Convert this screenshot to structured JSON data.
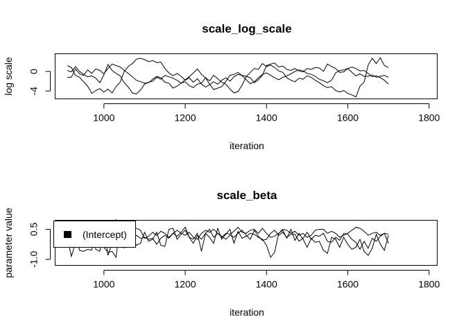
{
  "chart_data": [
    {
      "type": "line",
      "title": "scale_log_scale",
      "xlabel": "iteration",
      "ylabel": "log scale",
      "xlim": [
        880,
        1820
      ],
      "ylim": [
        -5.6,
        3.6
      ],
      "xticks": [
        1000,
        1200,
        1400,
        1600,
        1800
      ],
      "yticks": [
        -4,
        0
      ],
      "grid": false,
      "x_start": 910,
      "x_step": 10,
      "series": [
        {
          "values": [
            1.2,
            0.8,
            -0.8,
            -1.2,
            -2.1,
            -3.0,
            -4.5,
            -3.9,
            -3.5,
            -4.2,
            -3.6,
            -4.4,
            -3.1,
            -2.2,
            0.0,
            1.0,
            1.6,
            2.5,
            2.7,
            2.4,
            2.0,
            2.2,
            1.8,
            1.9,
            0.6,
            -0.3,
            -0.9,
            -0.4,
            -1.0,
            -1.8,
            -1.3,
            -2.2,
            -1.5,
            -2.6,
            -3.2,
            -2.7,
            -2.1,
            -2.6,
            -1.8,
            -1.3,
            -2.0,
            -1.1,
            -0.6,
            -0.8,
            -1.0,
            -1.3,
            -2.3,
            -1.7,
            -0.8,
            1.2,
            1.5,
            1.7,
            0.9,
            1.1,
            0.4,
            0.2,
            0.6,
            0.1,
            -0.1,
            0.6,
            0.4,
            0.8,
            0.7,
            0.0,
            1.5,
            1.0,
            0.6,
            -0.2,
            -0.1,
            0.6,
            -0.2,
            -0.9,
            -0.5,
            -1.0,
            -1.0,
            -0.7,
            -1.2,
            -1.0,
            -0.8,
            -1.2
          ]
        },
        {
          "values": [
            0.2,
            -0.1,
            1.0,
            0.0,
            -0.6,
            -1.1,
            -0.9,
            -1.4,
            -2.3,
            -0.7,
            1.4,
            0.2,
            -0.4,
            -0.9,
            -2.3,
            -3.2,
            -4.4,
            -4.6,
            -3.8,
            -2.6,
            -2.2,
            -2.0,
            -1.2,
            -1.6,
            -0.8,
            -1.1,
            -1.4,
            -1.8,
            -2.4,
            -2.1,
            -2.9,
            -3.3,
            -2.6,
            -2.4,
            -1.3,
            -1.9,
            -0.8,
            -1.5,
            -2.2,
            -2.6,
            -3.6,
            -4.4,
            -4.1,
            -2.8,
            -1.1,
            -0.2,
            0.6,
            0.4,
            1.6,
            1.0,
            1.3,
            0.8,
            0.1,
            -0.2,
            -1.3,
            -1.8,
            -2.1,
            -1.4,
            -1.6,
            -0.9,
            -1.2,
            -1.8,
            -2.3,
            -2.9,
            -3.3,
            -3.1,
            -3.9,
            -4.2,
            -3.9,
            -4.5,
            -4.8,
            -5.2,
            -3.0,
            -2.2,
            1.3,
            2.7,
            1.6,
            2.8,
            1.2,
            0.8
          ]
        },
        {
          "values": [
            -1.2,
            -1.2,
            0.5,
            -0.5,
            -0.8,
            0.3,
            -0.4,
            0.5,
            0.2,
            -0.5,
            0.6,
            1.5,
            1.2,
            0.9,
            0.2,
            -0.4,
            -1.1,
            -1.8,
            -2.1,
            -2.4,
            -2.3,
            -1.6,
            -1.0,
            -1.3,
            -2.2,
            -2.4,
            -3.4,
            -3.0,
            -2.4,
            -1.7,
            -1.1,
            -0.3,
            0.5,
            -0.6,
            -1.3,
            -2.6,
            -3.7,
            -3.4,
            -3.1,
            -2.0,
            -0.8,
            -0.6,
            -0.2,
            -0.9,
            -1.7,
            -2.5,
            -2.1,
            -1.3,
            -0.6,
            -0.3,
            -0.8,
            -1.3,
            -1.7,
            -1.2,
            -0.9,
            -0.5,
            0.0,
            0.3,
            0.1,
            -0.4,
            -0.6,
            -1.0,
            -1.6,
            -1.9,
            -2.3,
            -1.8,
            -0.3,
            0.2,
            0.3,
            0.6,
            0.9,
            0.6,
            0.1,
            0.2,
            -0.4,
            -1.1,
            -0.9,
            -1.3,
            -1.8,
            -2.6
          ]
        }
      ]
    },
    {
      "type": "line",
      "title": "scale_beta",
      "xlabel": "iteration",
      "ylabel": "parameter value",
      "xlim": [
        880,
        1820
      ],
      "ylim": [
        -1.3,
        0.95
      ],
      "xticks": [
        1000,
        1200,
        1400,
        1600,
        1800
      ],
      "yticks": [
        -1.0,
        0.5
      ],
      "ytick_labels": [
        "-1.0",
        "0.5"
      ],
      "grid": false,
      "legend": {
        "position": "top-left",
        "entries": [
          "(Intercept)"
        ]
      },
      "x_start": 910,
      "x_step": 10,
      "series": [
        {
          "values": [
            0.1,
            -0.85,
            -0.2,
            0.35,
            0.05,
            0.35,
            0.55,
            -0.5,
            -0.6,
            0.65,
            -0.8,
            -0.2,
            1.0,
            0.2,
            -0.45,
            0.7,
            0.05,
            -0.3,
            -0.2,
            0.35,
            -0.1,
            0.0,
            0.35,
            -0.3,
            -0.35,
            0.5,
            0.55,
            0.0,
            0.25,
            0.45,
            0.1,
            0.0,
            0.3,
            -0.6,
            0.3,
            0.1,
            -0.2,
            0.55,
            0.0,
            0.25,
            0.5,
            -0.2,
            0.4,
            0.05,
            0.15,
            0.3,
            0.25,
            0.1,
            0.0,
            -0.3,
            -0.9,
            -0.65,
            0.3,
            0.45,
            0.05,
            0.5,
            -0.05,
            0.3,
            0.0,
            -0.4,
            0.05,
            -0.15,
            -0.1,
            -0.55,
            -0.7,
            0.1,
            0.0,
            -0.4,
            0.1,
            -0.25,
            -0.5,
            -0.4,
            0.0,
            -0.6,
            -0.8,
            -0.45,
            0.25,
            -0.25,
            -0.55,
            0.2
          ]
        },
        {
          "values": [
            -0.35,
            -0.3,
            0.2,
            -0.55,
            -0.6,
            -0.5,
            -0.55,
            0.3,
            -0.3,
            -0.4,
            -0.65,
            -0.6,
            -0.9,
            0.85,
            0.35,
            0.3,
            0.0,
            0.2,
            0.05,
            0.1,
            0.0,
            0.05,
            -0.25,
            0.05,
            0.2,
            0.05,
            0.3,
            0.15,
            0.35,
            0.6,
            0.1,
            -0.2,
            0.2,
            0.0,
            0.3,
            0.5,
            0.1,
            0.3,
            0.15,
            0.0,
            0.2,
            0.1,
            0.3,
            0.45,
            0.2,
            0.0,
            0.45,
            0.15,
            -0.05,
            0.0,
            0.3,
            0.45,
            0.2,
            0.35,
            0.1,
            0.25,
            0.25,
            -0.1,
            0.05,
            0.35,
            0.0,
            0.2,
            0.15,
            0.3,
            -0.1,
            -0.15,
            0.1,
            -0.05,
            0.3,
            0.25,
            0.0,
            -0.15,
            -0.5,
            -0.1,
            -0.45,
            0.05,
            -0.1,
            0.15,
            0.3,
            -0.2
          ]
        },
        {
          "values": [
            -0.15,
            -0.1,
            -0.2,
            0.0,
            0.05,
            -0.1,
            0.0,
            0.1,
            -0.15,
            0.15,
            -0.05,
            -0.1,
            -0.25,
            0.0,
            0.3,
            0.5,
            0.55,
            0.55,
            0.45,
            0.05,
            0.15,
            0.35,
            0.2,
            0.4,
            0.3,
            0.1,
            0.3,
            0.45,
            0.3,
            0.2,
            0.35,
            0.1,
            0.0,
            0.3,
            0.45,
            0.35,
            0.5,
            0.3,
            0.1,
            0.3,
            0.25,
            0.4,
            0.6,
            0.35,
            0.3,
            0.45,
            0.5,
            0.3,
            0.55,
            0.3,
            0.1,
            0.15,
            0.3,
            0.5,
            0.45,
            0.3,
            0.4,
            0.2,
            0.3,
            0.1,
            0.2,
            0.45,
            0.5,
            0.5,
            0.3,
            0.4,
            0.3,
            0.1,
            0.2,
            0.3,
            0.45,
            0.6,
            0.55,
            0.4,
            0.2,
            0.3,
            0.35,
            0.2,
            0.3,
            0.25
          ]
        }
      ]
    }
  ]
}
